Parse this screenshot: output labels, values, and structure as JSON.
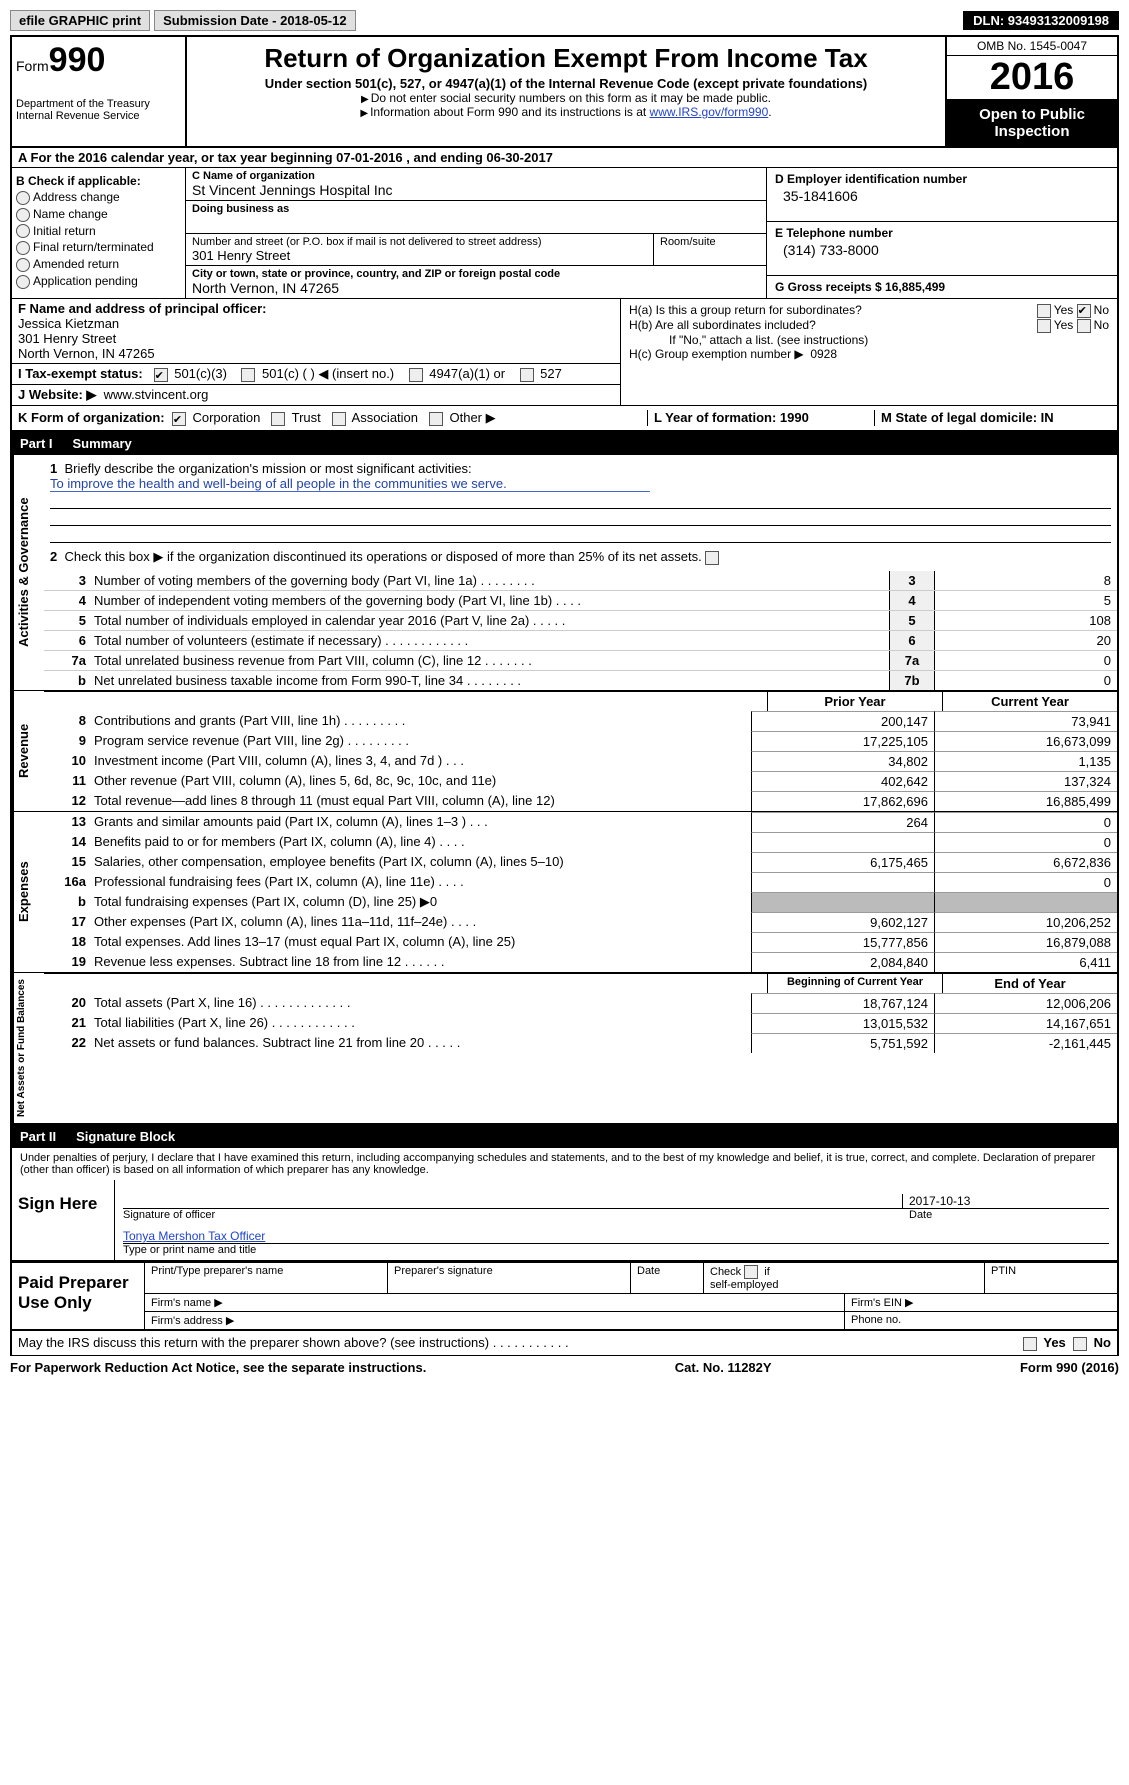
{
  "topbar": {
    "efile": "efile GRAPHIC print",
    "submission_label": "Submission Date - 2018-05-12",
    "dln": "DLN: 93493132009198"
  },
  "header": {
    "form_word": "Form",
    "form_no": "990",
    "dept1": "Department of the Treasury",
    "dept2": "Internal Revenue Service",
    "title": "Return of Organization Exempt From Income Tax",
    "subtitle": "Under section 501(c), 527, or 4947(a)(1) of the Internal Revenue Code (except private foundations)",
    "note1": "Do not enter social security numbers on this form as it may be made public.",
    "note2": "Information about Form 990 and its instructions is at ",
    "note2_link": "www.IRS.gov/form990",
    "omb": "OMB No. 1545-0047",
    "year": "2016",
    "inspection1": "Open to Public",
    "inspection2": "Inspection"
  },
  "row_a": "A  For the 2016 calendar year, or tax year beginning 07-01-2016   , and ending 06-30-2017",
  "col_b": {
    "header": "B Check if applicable:",
    "items": [
      "Address change",
      "Name change",
      "Initial return",
      "Final return/terminated",
      "Amended return",
      "Application pending"
    ]
  },
  "col_c": {
    "name_label": "C Name of organization",
    "name": "St Vincent Jennings Hospital Inc",
    "dba_label": "Doing business as",
    "dba": "",
    "street_label": "Number and street (or P.O. box if mail is not delivered to street address)",
    "room_label": "Room/suite",
    "street": "301 Henry Street",
    "city_label": "City or town, state or province, country, and ZIP or foreign postal code",
    "city": "North Vernon, IN  47265"
  },
  "col_d": {
    "ein_label": "D Employer identification number",
    "ein": "35-1841606",
    "phone_label": "E Telephone number",
    "phone": "(314) 733-8000",
    "gross_label": "G Gross receipts $ 16,885,499"
  },
  "row_f": {
    "label": "F  Name and address of principal officer:",
    "name": "Jessica Kietzman",
    "addr1": "301 Henry Street",
    "addr2": "North Vernon, IN  47265"
  },
  "row_h": {
    "a": "H(a)  Is this a group return for subordinates?",
    "b": "H(b)  Are all subordinates included?",
    "b_note": "If \"No,\" attach a list. (see instructions)",
    "c_label": "H(c)  Group exemption number ▶",
    "c_val": "0928",
    "yes": "Yes",
    "no": "No"
  },
  "row_i": {
    "label": "I  Tax-exempt status:",
    "o1": "501(c)(3)",
    "o2": "501(c) (   ) ◀ (insert no.)",
    "o3": "4947(a)(1) or",
    "o4": "527"
  },
  "row_j": {
    "label": "J  Website: ▶",
    "val": "www.stvincent.org"
  },
  "row_k": {
    "left_label": "K Form of organization:",
    "o1": "Corporation",
    "o2": "Trust",
    "o3": "Association",
    "o4": "Other ▶",
    "l": "L Year of formation: 1990",
    "m": "M State of legal domicile: IN"
  },
  "partI": {
    "label": "Part I",
    "title": "Summary"
  },
  "summary": {
    "q1": "Briefly describe the organization's mission or most significant activities:",
    "q1_ans": "To improve the health and well-being of all people in the communities we serve.",
    "q2": "Check this box ▶      if the organization discontinued its operations or disposed of more than 25% of its net assets."
  },
  "gov_lines": [
    {
      "n": "3",
      "d": "Number of voting members of the governing body (Part VI, line 1a)   .   .   .   .   .   .   .   .",
      "bn": "3",
      "bv": "8"
    },
    {
      "n": "4",
      "d": "Number of independent voting members of the governing body (Part VI, line 1b)    .   .   .   .",
      "bn": "4",
      "bv": "5"
    },
    {
      "n": "5",
      "d": "Total number of individuals employed in calendar year 2016 (Part V, line 2a)   .   .   .   .   .",
      "bn": "5",
      "bv": "108"
    },
    {
      "n": "6",
      "d": "Total number of volunteers (estimate if necessary)   .   .   .   .   .   .   .   .   .   .   .   .",
      "bn": "6",
      "bv": "20"
    },
    {
      "n": "7a",
      "d": "Total unrelated business revenue from Part VIII, column (C), line 12   .   .   .   .   .   .   .",
      "bn": "7a",
      "bv": "0"
    },
    {
      "n": "b",
      "d": "Net unrelated business taxable income from Form 990-T, line 34   .   .   .   .   .   .   .   .",
      "bn": "7b",
      "bv": "0"
    }
  ],
  "twocol_hdr": {
    "c1": "Prior Year",
    "c2": "Current Year"
  },
  "revenue": [
    {
      "n": "8",
      "d": "Contributions and grants (Part VIII, line 1h)   .   .   .   .   .   .   .   .   .",
      "c1": "200,147",
      "c2": "73,941"
    },
    {
      "n": "9",
      "d": "Program service revenue (Part VIII, line 2g)   .   .   .   .   .   .   .   .   .",
      "c1": "17,225,105",
      "c2": "16,673,099"
    },
    {
      "n": "10",
      "d": "Investment income (Part VIII, column (A), lines 3, 4, and 7d )   .   .   .",
      "c1": "34,802",
      "c2": "1,135"
    },
    {
      "n": "11",
      "d": "Other revenue (Part VIII, column (A), lines 5, 6d, 8c, 9c, 10c, and 11e)",
      "c1": "402,642",
      "c2": "137,324"
    },
    {
      "n": "12",
      "d": "Total revenue—add lines 8 through 11 (must equal Part VIII, column (A), line 12)",
      "c1": "17,862,696",
      "c2": "16,885,499"
    }
  ],
  "expenses": [
    {
      "n": "13",
      "d": "Grants and similar amounts paid (Part IX, column (A), lines 1–3 )   .   .   .",
      "c1": "264",
      "c2": "0"
    },
    {
      "n": "14",
      "d": "Benefits paid to or for members (Part IX, column (A), line 4)   .   .   .   .",
      "c1": "",
      "c2": "0"
    },
    {
      "n": "15",
      "d": "Salaries, other compensation, employee benefits (Part IX, column (A), lines 5–10)",
      "c1": "6,175,465",
      "c2": "6,672,836"
    },
    {
      "n": "16a",
      "d": "Professional fundraising fees (Part IX, column (A), line 11e)   .   .   .   .",
      "c1": "",
      "c2": "0"
    },
    {
      "n": "b",
      "d": "Total fundraising expenses (Part IX, column (D), line 25) ▶0",
      "c1": "grey",
      "c2": "grey"
    },
    {
      "n": "17",
      "d": "Other expenses (Part IX, column (A), lines 11a–11d, 11f–24e)   .   .   .   .",
      "c1": "9,602,127",
      "c2": "10,206,252"
    },
    {
      "n": "18",
      "d": "Total expenses. Add lines 13–17 (must equal Part IX, column (A), line 25)",
      "c1": "15,777,856",
      "c2": "16,879,088"
    },
    {
      "n": "19",
      "d": "Revenue less expenses. Subtract line 18 from line 12   .   .   .   .   .   .",
      "c1": "2,084,840",
      "c2": "6,411"
    }
  ],
  "netassets_hdr": {
    "c1": "Beginning of Current Year",
    "c2": "End of Year"
  },
  "netassets": [
    {
      "n": "20",
      "d": "Total assets (Part X, line 16)   .   .   .   .   .   .   .   .   .   .   .   .   .",
      "c1": "18,767,124",
      "c2": "12,006,206"
    },
    {
      "n": "21",
      "d": "Total liabilities (Part X, line 26)   .   .   .   .   .   .   .   .   .   .   .   .",
      "c1": "13,015,532",
      "c2": "14,167,651"
    },
    {
      "n": "22",
      "d": "Net assets or fund balances. Subtract line 21 from line 20 .   .   .   .   .",
      "c1": "5,751,592",
      "c2": "-2,161,445"
    }
  ],
  "partII": {
    "label": "Part II",
    "title": "Signature Block"
  },
  "perjury": "Under penalties of perjury, I declare that I have examined this return, including accompanying schedules and statements, and to the best of my knowledge and belief, it is true, correct, and complete. Declaration of preparer (other than officer) is based on all information of which preparer has any knowledge.",
  "sign": {
    "label": "Sign Here",
    "date": "2017-10-13",
    "sig_label": "Signature of officer",
    "date_label": "Date",
    "name": "Tonya Mershon Tax Officer",
    "name_label": "Type or print name and title"
  },
  "preparer": {
    "label": "Paid Preparer Use Only",
    "h1": "Print/Type preparer's name",
    "h2": "Preparer's signature",
    "h3": "Date",
    "h4": "Check       if self-employed",
    "h5": "PTIN",
    "firm_name": "Firm's name    ▶",
    "firm_ein": "Firm's EIN ▶",
    "firm_addr": "Firm's address ▶",
    "phone": "Phone no."
  },
  "footer": {
    "discuss": "May the IRS discuss this return with the preparer shown above? (see instructions)   .   .   .   .   .   .   .   .   .   .   .",
    "yes": "Yes",
    "no": "No",
    "paperwork": "For Paperwork Reduction Act Notice, see the separate instructions.",
    "catno": "Cat. No. 11282Y",
    "formno": "Form 990 (2016)"
  },
  "side_labels": {
    "gov": "Activities & Governance",
    "rev": "Revenue",
    "exp": "Expenses",
    "net": "Net Assets or Fund Balances"
  }
}
